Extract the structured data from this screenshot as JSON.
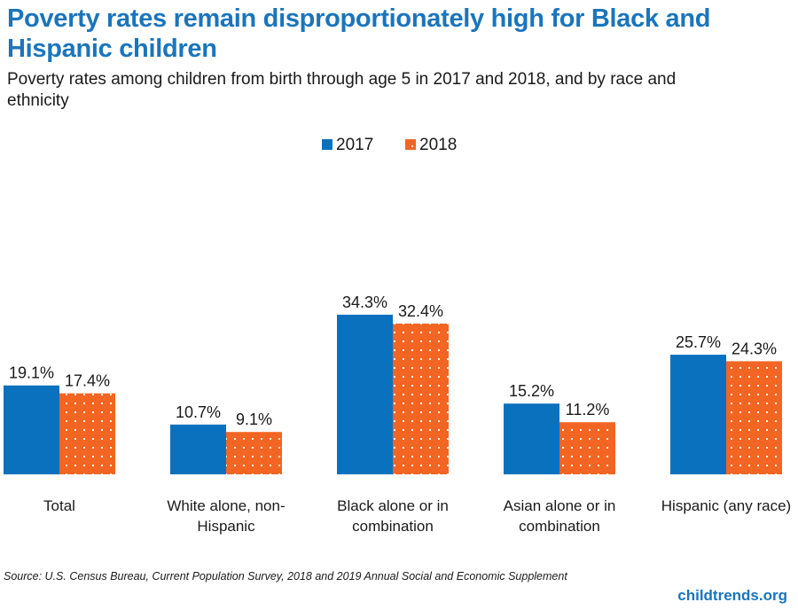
{
  "title": "Poverty rates remain disproportionately high for Black and Hispanic children",
  "subtitle": "Poverty rates among children from birth through age 5 in 2017 and 2018, and by race and ethnicity",
  "source": "Source: U.S. Census Bureau, Current Population Survey, 2018 and 2019 Annual Social and Economic Supplement",
  "brand": "childtrends.org",
  "colors": {
    "series_2017": "#0a71bf",
    "series_2018": "#f26522",
    "title": "#1a75bc"
  },
  "chart_data": {
    "type": "bar",
    "categories": [
      [
        "Total"
      ],
      [
        "White alone, non-",
        "Hispanic"
      ],
      [
        "Black alone or in",
        "combination"
      ],
      [
        "Asian alone or in",
        "combination"
      ],
      [
        "Hispanic (any race)"
      ]
    ],
    "series": [
      {
        "name": "2017",
        "values": [
          19.1,
          10.7,
          34.3,
          15.2,
          25.7
        ],
        "labels": [
          "19.1%",
          "10.7%",
          "34.3%",
          "15.2%",
          "25.7%"
        ]
      },
      {
        "name": "2018",
        "values": [
          17.4,
          9.1,
          32.4,
          11.2,
          24.3
        ],
        "labels": [
          "17.4%",
          "9.1%",
          "32.4%",
          "11.2%",
          "24.3%"
        ]
      }
    ],
    "ylim": [
      0,
      40
    ],
    "legend_position": "top-center",
    "grid": false
  }
}
